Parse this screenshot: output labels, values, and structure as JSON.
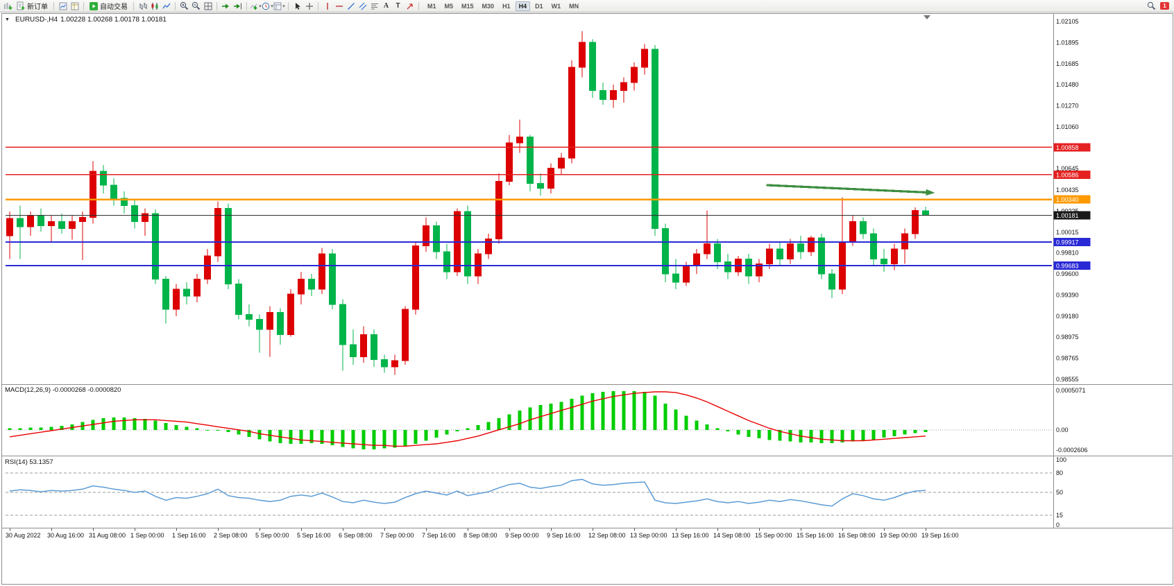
{
  "toolbar": {
    "new_order_label": "新订单",
    "autotrading_label": "自动交易",
    "periods": [
      "M1",
      "M5",
      "M15",
      "M30",
      "H1",
      "H4",
      "D1",
      "W1",
      "MN"
    ],
    "active_period": "H4",
    "notification_badge": "1"
  },
  "chart_data": [
    {
      "type": "candlestick",
      "title": "EURUSD-,H4",
      "ohlc_display": "1.00228 1.00268 1.00178 1.00181",
      "up_color": "#dc0000",
      "down_color": "#00b44a",
      "y_range": [
        0.98521,
        1.02167
      ],
      "y_ticks": [
        "1.02105",
        "1.01895",
        "1.01685",
        "1.01480",
        "1.01270",
        "1.01060",
        "1.00645",
        "1.00435",
        "1.00225",
        "1.00015",
        "0.99810",
        "0.99600",
        "0.99390",
        "0.99180",
        "0.98975",
        "0.98765",
        "0.98555"
      ],
      "x_labels": [
        "30 Aug 2022",
        "30 Aug 16:00",
        "31 Aug 08:00",
        "1 Sep 00:00",
        "1 Sep 16:00",
        "2 Sep 08:00",
        "5 Sep 00:00",
        "5 Sep 16:00",
        "6 Sep 08:00",
        "7 Sep 00:00",
        "7 Sep 16:00",
        "8 Sep 08:00",
        "9 Sep 00:00",
        "9 Sep 16:00",
        "12 Sep 08:00",
        "13 Sep 00:00",
        "13 Sep 16:00",
        "14 Sep 08:00",
        "15 Sep 00:00",
        "15 Sep 16:00",
        "16 Sep 08:00",
        "19 Sep 00:00",
        "19 Sep 16:00"
      ],
      "x_label_step": 4,
      "hlines": [
        {
          "price": 1.00858,
          "label": "1.00858",
          "color": "#e52020",
          "width": 1.4
        },
        {
          "price": 1.00586,
          "label": "1.00586",
          "color": "#e52020",
          "width": 1.4
        },
        {
          "price": 1.0034,
          "label": "1.00340",
          "color": "#ff9a00",
          "width": 2.4
        },
        {
          "price": 0.99917,
          "label": "0.99917",
          "color": "#2929d6",
          "width": 2
        },
        {
          "price": 0.99683,
          "label": "0.99683",
          "color": "#2929d6",
          "width": 2
        }
      ],
      "current_price": {
        "price": 1.00181,
        "label": "1.00181",
        "color": "#2f2f2f",
        "badge_color": "#1a1a1a",
        "width": 1
      },
      "arrow": {
        "from_index": 72.7,
        "from_price": 1.00482,
        "to_index": 88.9,
        "to_price": 1.00406,
        "color": "#3e8e41",
        "width": 3.2
      },
      "candles": [
        [
          0.9998,
          1.0022,
          0.9975,
          1.0015
        ],
        [
          1.0015,
          1.0028,
          0.9975,
          1.0007
        ],
        [
          1.0007,
          1.0022,
          0.9998,
          1.0018
        ],
        [
          1.0018,
          1.0025,
          1.0002,
          1.0008
        ],
        [
          1.0008,
          1.0018,
          0.9992,
          1.0012
        ],
        [
          1.0012,
          1.002,
          1.0,
          1.0005
        ],
        [
          1.0005,
          1.0018,
          0.9994,
          1.0012
        ],
        [
          1.0012,
          1.0022,
          0.9974,
          1.0016
        ],
        [
          1.0016,
          1.0072,
          1.001,
          1.0062
        ],
        [
          1.0062,
          1.0068,
          1.004,
          1.0048
        ],
        [
          1.0048,
          1.0055,
          1.0028,
          1.0035
        ],
        [
          1.0035,
          1.0042,
          1.002,
          1.0028
        ],
        [
          1.0028,
          1.0033,
          1.0005,
          1.0012
        ],
        [
          1.0012,
          1.0025,
          0.9998,
          1.002
        ],
        [
          1.002,
          1.0024,
          0.995,
          0.9955
        ],
        [
          0.9955,
          0.9958,
          0.9911,
          0.9925
        ],
        [
          0.9925,
          0.995,
          0.9918,
          0.9945
        ],
        [
          0.9945,
          0.9952,
          0.993,
          0.9938
        ],
        [
          0.9938,
          0.996,
          0.9932,
          0.9955
        ],
        [
          0.9955,
          0.9985,
          0.995,
          0.9978
        ],
        [
          0.9978,
          1.0032,
          0.9972,
          1.0025
        ],
        [
          1.0025,
          1.003,
          0.9945,
          0.995
        ],
        [
          0.995,
          0.9955,
          0.9915,
          0.992
        ],
        [
          0.992,
          0.993,
          0.9908,
          0.9915
        ],
        [
          0.9915,
          0.992,
          0.9882,
          0.9905
        ],
        [
          0.9905,
          0.9928,
          0.9878,
          0.9922
        ],
        [
          0.9922,
          0.9926,
          0.989,
          0.99
        ],
        [
          0.99,
          0.9945,
          0.9898,
          0.994
        ],
        [
          0.994,
          0.9962,
          0.993,
          0.9955
        ],
        [
          0.9955,
          0.996,
          0.9938,
          0.9945
        ],
        [
          0.9945,
          0.9986,
          0.994,
          0.998
        ],
        [
          0.998,
          0.9985,
          0.9925,
          0.993
        ],
        [
          0.993,
          0.9935,
          0.9864,
          0.989
        ],
        [
          0.989,
          0.9905,
          0.987,
          0.9878
        ],
        [
          0.9878,
          0.9908,
          0.9872,
          0.99
        ],
        [
          0.99,
          0.9905,
          0.9868,
          0.9875
        ],
        [
          0.9875,
          0.988,
          0.9862,
          0.9868
        ],
        [
          0.9868,
          0.988,
          0.986,
          0.9874
        ],
        [
          0.9874,
          0.9928,
          0.987,
          0.9925
        ],
        [
          0.9925,
          0.9992,
          0.992,
          0.9988
        ],
        [
          0.9988,
          1.0016,
          0.9982,
          1.0008
        ],
        [
          1.0008,
          1.0012,
          0.9975,
          0.9982
        ],
        [
          0.9982,
          0.999,
          0.9955,
          0.9962
        ],
        [
          0.9962,
          1.0025,
          0.9958,
          1.0022
        ],
        [
          1.0022,
          1.0028,
          0.995,
          0.9958
        ],
        [
          0.9958,
          0.9985,
          0.995,
          0.998
        ],
        [
          0.998,
          1.0,
          0.9975,
          0.9995
        ],
        [
          0.9995,
          1.006,
          0.999,
          1.0052
        ],
        [
          1.0052,
          1.0098,
          1.0048,
          1.009
        ],
        [
          1.009,
          1.0113,
          1.008,
          1.0096
        ],
        [
          1.0096,
          1.0098,
          1.0042,
          1.005
        ],
        [
          1.005,
          1.006,
          1.0038,
          1.0045
        ],
        [
          1.0045,
          1.007,
          1.004,
          1.0065
        ],
        [
          1.0065,
          1.008,
          1.0058,
          1.0075
        ],
        [
          1.0075,
          1.0172,
          1.007,
          1.0165
        ],
        [
          1.0165,
          1.0201,
          1.0155,
          1.019
        ],
        [
          1.019,
          1.0193,
          1.0135,
          1.0142
        ],
        [
          1.0142,
          1.015,
          1.0128,
          1.0133
        ],
        [
          1.0133,
          1.0148,
          1.0125,
          1.0142
        ],
        [
          1.0142,
          1.0155,
          1.013,
          1.015
        ],
        [
          1.015,
          1.017,
          1.0142,
          1.0165
        ],
        [
          1.0165,
          1.0188,
          1.0158,
          1.0183
        ],
        [
          1.0183,
          1.0187,
          0.9998,
          1.0005
        ],
        [
          1.0005,
          1.001,
          0.9952,
          0.996
        ],
        [
          0.996,
          0.9975,
          0.9945,
          0.9952
        ],
        [
          0.9952,
          0.9972,
          0.9948,
          0.9968
        ],
        [
          0.9968,
          0.9985,
          0.996,
          0.998
        ],
        [
          0.998,
          1.0023,
          0.9975,
          0.999
        ],
        [
          0.999,
          0.9995,
          0.9965,
          0.9972
        ],
        [
          0.9972,
          0.998,
          0.9955,
          0.9962
        ],
        [
          0.9962,
          0.9978,
          0.9958,
          0.9975
        ],
        [
          0.9975,
          0.998,
          0.995,
          0.9958
        ],
        [
          0.9958,
          0.9975,
          0.9952,
          0.997
        ],
        [
          0.997,
          0.999,
          0.9965,
          0.9985
        ],
        [
          0.9985,
          0.9992,
          0.9968,
          0.9975
        ],
        [
          0.9975,
          0.9995,
          0.997,
          0.999
        ],
        [
          0.999,
          0.9998,
          0.9975,
          0.9982
        ],
        [
          0.9982,
          0.9998,
          0.9978,
          0.9996
        ],
        [
          0.9996,
          1.0,
          0.9955,
          0.996
        ],
        [
          0.996,
          0.9965,
          0.9936,
          0.9945
        ],
        [
          0.9945,
          1.0036,
          0.994,
          0.9992
        ],
        [
          0.9992,
          1.0018,
          0.9988,
          1.0012
        ],
        [
          1.0012,
          1.0016,
          0.9995,
          1.0
        ],
        [
          1.0,
          1.0005,
          0.9968,
          0.9975
        ],
        [
          0.9975,
          0.9985,
          0.9962,
          0.997
        ],
        [
          0.997,
          0.999,
          0.9964,
          0.9985
        ],
        [
          0.9985,
          1.0005,
          0.997,
          1.0
        ],
        [
          1.0,
          1.0026,
          0.9995,
          1.0023
        ],
        [
          1.00228,
          1.00268,
          1.00178,
          1.00181
        ]
      ]
    },
    {
      "type": "bar",
      "name": "MACD",
      "label": "MACD(12,26,9) -0.0000268 -0.0000820",
      "bar_color": "#00cd00",
      "signal_color": "#ea0000",
      "y_range": [
        -0.000314,
        0.00057
      ],
      "y_ticks": [
        "0.0005071",
        "0.00",
        "-0.0002606"
      ],
      "unit": 1e-05,
      "histogram": [
        2,
        2,
        3,
        3,
        4,
        5,
        7,
        10,
        13,
        15,
        16,
        16,
        15,
        14,
        12,
        9,
        6,
        4,
        2,
        0,
        -1,
        -3,
        -6,
        -9,
        -12,
        -15,
        -17,
        -18,
        -18,
        -17,
        -18,
        -20,
        -22,
        -24,
        -25,
        -25,
        -24,
        -23,
        -21,
        -18,
        -14,
        -10,
        -6,
        -2,
        2,
        6,
        10,
        15,
        20,
        25,
        29,
        32,
        34,
        36,
        40,
        44,
        47,
        49,
        50,
        50,
        50,
        49,
        44,
        34,
        26,
        18,
        12,
        7,
        2,
        -2,
        -6,
        -9,
        -11,
        -13,
        -14,
        -15,
        -16,
        -16,
        -17,
        -17,
        -16,
        -15,
        -14,
        -13,
        -10,
        -8,
        -6,
        -4,
        -3
      ],
      "signal": [
        -9,
        -7,
        -5,
        -3,
        -1,
        1,
        3,
        5,
        7,
        9,
        11,
        12,
        13,
        13,
        13,
        12,
        11,
        10,
        8,
        6,
        4,
        2,
        0,
        -2,
        -5,
        -7,
        -9,
        -11,
        -13,
        -14,
        -15,
        -16,
        -17,
        -18,
        -19,
        -20,
        -20,
        -21,
        -21,
        -20,
        -19,
        -18,
        -16,
        -14,
        -11,
        -8,
        -4,
        0,
        4,
        8,
        13,
        17,
        21,
        25,
        29,
        33,
        37,
        40,
        43,
        45,
        47,
        48,
        49,
        49,
        48,
        45,
        41,
        36,
        30,
        24,
        18,
        12,
        7,
        2,
        -2,
        -5,
        -8,
        -10,
        -12,
        -13,
        -14,
        -14,
        -14,
        -13,
        -12,
        -11,
        -10,
        -9,
        -8
      ]
    },
    {
      "type": "line",
      "name": "RSI",
      "label": "RSI(14) 53.1357",
      "line_color": "#5b9bd5",
      "y_range": [
        -3.2,
        104.3
      ],
      "y_ticks": [
        "100",
        "80",
        "50",
        "15",
        "0"
      ],
      "levels": [
        80,
        50,
        15
      ],
      "values": [
        52,
        54,
        53,
        51,
        53,
        52,
        53,
        55,
        60,
        58,
        55,
        53,
        50,
        52,
        44,
        38,
        42,
        41,
        44,
        48,
        55,
        45,
        42,
        41,
        38,
        36,
        38,
        44,
        46,
        44,
        49,
        43,
        36,
        34,
        38,
        35,
        33,
        35,
        42,
        48,
        52,
        49,
        46,
        52,
        45,
        48,
        51,
        57,
        62,
        64,
        58,
        56,
        59,
        61,
        68,
        70,
        63,
        61,
        62,
        64,
        65,
        66,
        38,
        34,
        33,
        35,
        37,
        40,
        36,
        34,
        36,
        33,
        35,
        38,
        36,
        39,
        37,
        34,
        31,
        29,
        40,
        48,
        45,
        40,
        38,
        42,
        48,
        52,
        53.1
      ]
    }
  ]
}
